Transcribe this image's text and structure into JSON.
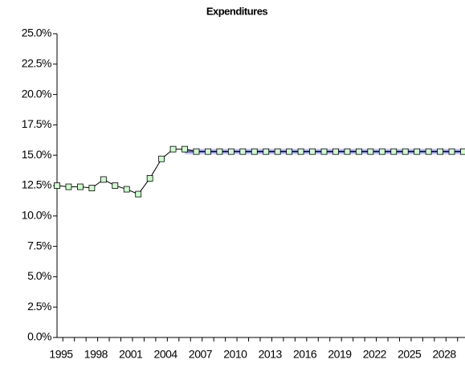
{
  "chart_data": {
    "type": "line",
    "title": "Expenditures",
    "categories": [
      "1995",
      null,
      null,
      "1998",
      null,
      null,
      "2001",
      null,
      null,
      "2004",
      null,
      null,
      "2007",
      null,
      null,
      "2010",
      null,
      null,
      "2013",
      null,
      null,
      "2016",
      null,
      null,
      "2019",
      null,
      null,
      "2022",
      null,
      null,
      "2025",
      null,
      null,
      "2028",
      null,
      null
    ],
    "series": [
      {
        "color": "#6666cc",
        "markers": false,
        "values": [
          null,
          null,
          null,
          null,
          null,
          null,
          null,
          null,
          null,
          null,
          null,
          15.3,
          15.3,
          15.3,
          15.3,
          15.3,
          15.3,
          15.3,
          15.3,
          15.3,
          15.3,
          15.3,
          15.3,
          15.3,
          15.3,
          15.3,
          15.3,
          15.3,
          15.3,
          15.3,
          15.3,
          15.3,
          15.3,
          15.3,
          15.3,
          15.3
        ]
      },
      {
        "color": "#000000",
        "markers": true,
        "marker_color": "#ccffcc",
        "values": [
          12.5,
          12.4,
          12.4,
          12.3,
          13.0,
          12.5,
          12.2,
          11.8,
          13.1,
          14.7,
          15.5,
          15.5,
          15.3,
          15.3,
          15.3,
          15.3,
          15.3,
          15.3,
          15.3,
          15.3,
          15.3,
          15.3,
          15.3,
          15.3,
          15.3,
          15.3,
          15.3,
          15.3,
          15.3,
          15.3,
          15.3,
          15.3,
          15.3,
          15.3,
          15.3,
          15.3
        ]
      }
    ],
    "ylim": [
      0,
      25
    ],
    "yticks": [
      {
        "value": 0,
        "label": "0.0%"
      },
      {
        "value": 2.5,
        "label": "2.5%"
      },
      {
        "value": 5,
        "label": "5.0%"
      },
      {
        "value": 7.5,
        "label": "7.5%"
      },
      {
        "value": 10,
        "label": "10.0%"
      },
      {
        "value": 12.5,
        "label": "12.5%"
      },
      {
        "value": 15,
        "label": "15.0%"
      },
      {
        "value": 17.5,
        "label": "17.5%"
      },
      {
        "value": 20,
        "label": "20.0%"
      },
      {
        "value": 22.5,
        "label": "22.5%"
      },
      {
        "value": 25,
        "label": "25.0%"
      }
    ],
    "grid": false
  }
}
